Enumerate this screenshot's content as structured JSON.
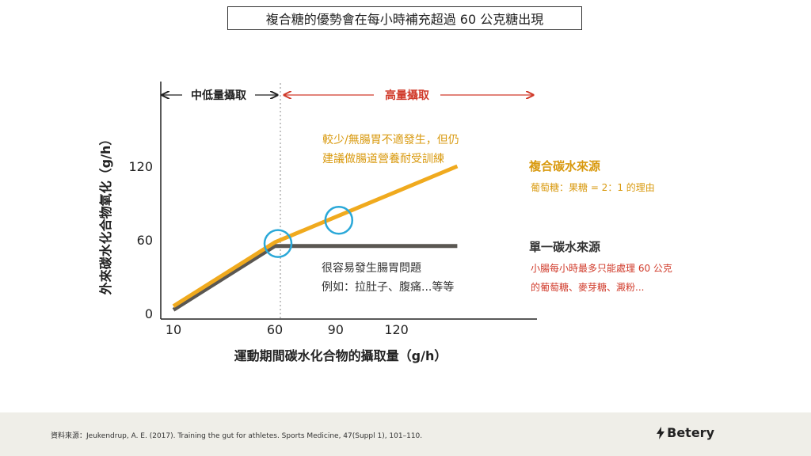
{
  "title": "複合糖的優勢會在每小時補充超過 60 公克糖出現",
  "chart_data": {
    "type": "line",
    "xlabel": "運動期間碳水化合物的攝取量（g/h）",
    "ylabel": "外來碳水化合物氧化（g/h）",
    "x_ticks": [
      10,
      60,
      90,
      120
    ],
    "y_ticks": [
      0,
      60,
      120
    ],
    "xlim": [
      0,
      150
    ],
    "ylim": [
      0,
      160
    ],
    "series": [
      {
        "name": "複合碳水來源",
        "color": "#f0aa1e",
        "x": [
          10,
          60,
          150
        ],
        "y": [
          6,
          58,
          120
        ]
      },
      {
        "name": "單一碳水來源",
        "color": "#5a5752",
        "x": [
          10,
          60,
          150
        ],
        "y": [
          3,
          55,
          55
        ]
      }
    ],
    "circles": [
      {
        "x": 60,
        "y": 57
      },
      {
        "x": 90,
        "y": 76
      }
    ],
    "range_labels": {
      "low": "中低量攝取",
      "high": "高量攝取"
    },
    "annotations": {
      "composite_note": [
        "較少/無腸胃不適發生，但仍",
        "建議做腸道營養耐受訓練"
      ],
      "single_note": [
        "很容易發生腸胃問題",
        "例如：拉肚子、腹痛...等等"
      ],
      "composite_label": "複合碳水來源",
      "composite_ratio": "葡萄糖：果糖 = 2：1 的理由",
      "single_label": "單一碳水來源",
      "single_limit": [
        "小腸每小時最多只能處理 60 公克",
        "的葡萄糖、麥芽糖、澱粉..."
      ]
    },
    "colors": {
      "composite": "#f0aa1e",
      "single": "#5a5752",
      "high": "#d03a2a",
      "circle": "#2aa8d8",
      "note": "#d99a10"
    }
  },
  "footer": {
    "source": "資料來源：Jeukendrup, A. E. (2017). Training the gut for athletes. Sports Medicine, 47(Suppl 1), 101–110.",
    "brand": "Betery"
  }
}
